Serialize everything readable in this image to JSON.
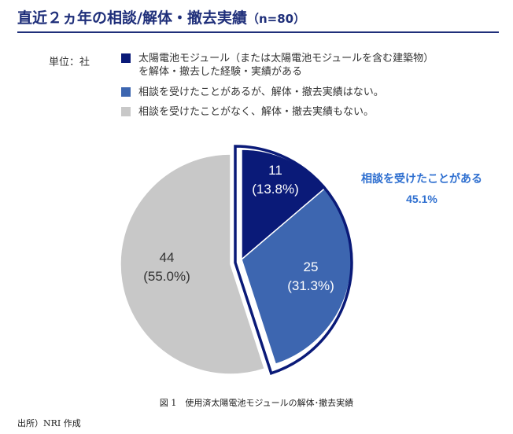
{
  "header": {
    "title": "直近２ヵ年の相談/解体・撤去実績",
    "sample": "（n=80）"
  },
  "unit_label": "単位：社",
  "legend": [
    {
      "lines": [
        "太陽電池モジュール（または太陽電池モジュールを含む建築物）",
        "を解体・撤去した経験・実績がある"
      ],
      "color": "#0a1a78"
    },
    {
      "lines": [
        "相談を受けたことがあるが、解体・撤去実績はない。"
      ],
      "color": "#3d66b0"
    },
    {
      "lines": [
        "相談を受けたことがなく、解体・撤去実績もない。"
      ],
      "color": "#c8c8c8"
    }
  ],
  "chart_data": {
    "type": "pie",
    "title": "直近２ヵ年の相談/解体・撤去実績",
    "total_n": 80,
    "series": [
      {
        "label": "太陽電池モジュール（または太陽電池モジュールを含む建築物）を解体・撤去した経験・実績がある",
        "value": 11,
        "percent_label": "(13.8%)",
        "color": "#0a1a78",
        "text_color": "#ffffff"
      },
      {
        "label": "相談を受けたことがあるが、解体・撤去実績はない。",
        "value": 25,
        "percent_label": "(31.3%)",
        "color": "#3d66b0",
        "text_color": "#ffffff"
      },
      {
        "label": "相談を受けたことがなく、解体・撤去実績もない。",
        "value": 44,
        "percent_label": "(55.0%)",
        "color": "#c8c8c8",
        "text_color": "#333333"
      }
    ],
    "annotation": {
      "text": "相談を受けたことがある",
      "value": "45.1%",
      "color": "#2e6fd0"
    },
    "outline_color": "#0a1a78"
  },
  "figure_caption": "図 1　使用済太陽電池モジュールの解体･撤去実績",
  "source": "出所）NRI 作成"
}
